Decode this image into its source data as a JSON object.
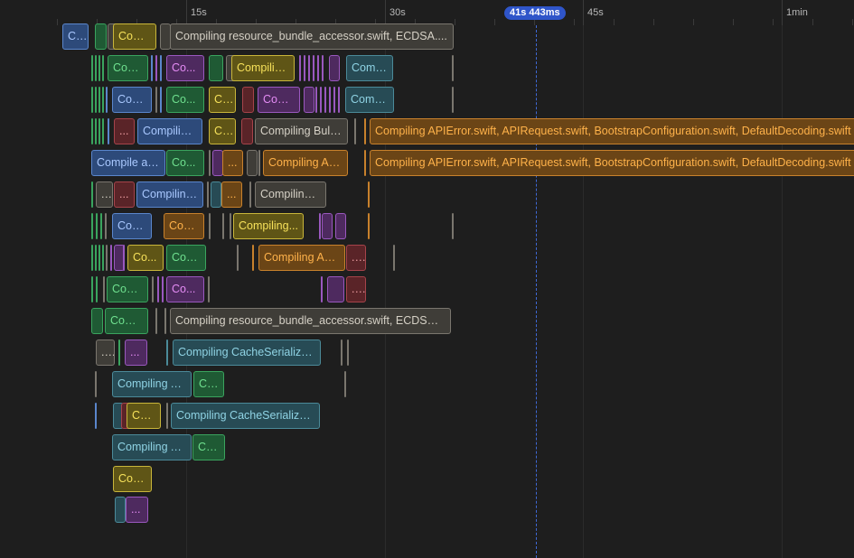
{
  "timeline": {
    "ticks": [
      "15s",
      "30s",
      "45s",
      "1min"
    ],
    "cursor_label": "41s 443ms"
  },
  "colors": {
    "blue": {
      "fill": "#2d4a7a",
      "border": "#5a86cc",
      "text": "#a9c8ff"
    },
    "green": {
      "fill": "#1f5a34",
      "border": "#3aa45e",
      "text": "#6fe08f"
    },
    "yellow": {
      "fill": "#5f5516",
      "border": "#c9b63a",
      "text": "#f6e15a"
    },
    "purple": {
      "fill": "#4e2a5f",
      "border": "#9a58bf",
      "text": "#e58cf5"
    },
    "slate": {
      "fill": "#3f3d38",
      "border": "#7a766e",
      "text": "#d6d1c6"
    },
    "teal": {
      "fill": "#274b55",
      "border": "#4b8a99",
      "text": "#8fd3e4"
    },
    "red": {
      "fill": "#5a2428",
      "border": "#a6434a",
      "text": "#f0a0a4"
    },
    "orange": {
      "fill": "#6b4516",
      "border": "#c8812c",
      "text": "#ffb24a"
    }
  },
  "tasks": {
    "t0_1": "C...",
    "t0_2": "Com...",
    "t0_3": "Compiling resource_bundle_accessor.swift, ECDSA....",
    "t1_1": "Com...",
    "t1_2": "Co...",
    "t1_3": "Compilin...",
    "t1_4": "Comp...",
    "t2_1": "Com...",
    "t2_2": "Co...",
    "t2_3": "C...",
    "t2_4": "Com...",
    "t2_5": "Compi...",
    "t3_1": "...",
    "t3_2": "Compiling...",
    "t3_3": "C...",
    "t3_4": "Compiling Bulk...",
    "t3_5": "Compiling APIError.swift, APIRequest.swift, BootstrapConfiguration.swift, DefaultDecoding.swift",
    "t4_1": "Compile as...",
    "t4_2": "Co...",
    "t4_3": "...",
    "t4_4": "Compiling Ad...",
    "t4_5": "Compiling APIError.swift, APIRequest.swift, BootstrapConfiguration.swift, DefaultDecoding.swift",
    "t5_1": "...",
    "t5_2": "...",
    "t5_3": "Compiling...",
    "t5_4": "...",
    "t5_5": "Compiling Bulk...",
    "t6_1": "Com...",
    "t6_2": "Com...",
    "t6_3": "Compiling...",
    "t7_1": "Co...",
    "t7_2": "Com...",
    "t7_3": "Compiling Adj...",
    "t7_4": "...",
    "t8_1": "Com...",
    "t8_2": "Co...",
    "t8_3": "...",
    "t9_1": "Com...",
    "t9_2": "Compiling resource_bundle_accessor.swift, ECDSA....",
    "t10_1": "...",
    "t10_2": "...",
    "t10_3": "Compiling CacheSerialize...",
    "t11_1": "Compiling A...",
    "t11_2": "Co...",
    "t12_1": "Co...",
    "t12_2": "Compiling CacheSerializer....",
    "t13_1": "Compiling A...",
    "t13_2": "Co...",
    "t14_1": "Com...",
    "t15_1": "..."
  }
}
